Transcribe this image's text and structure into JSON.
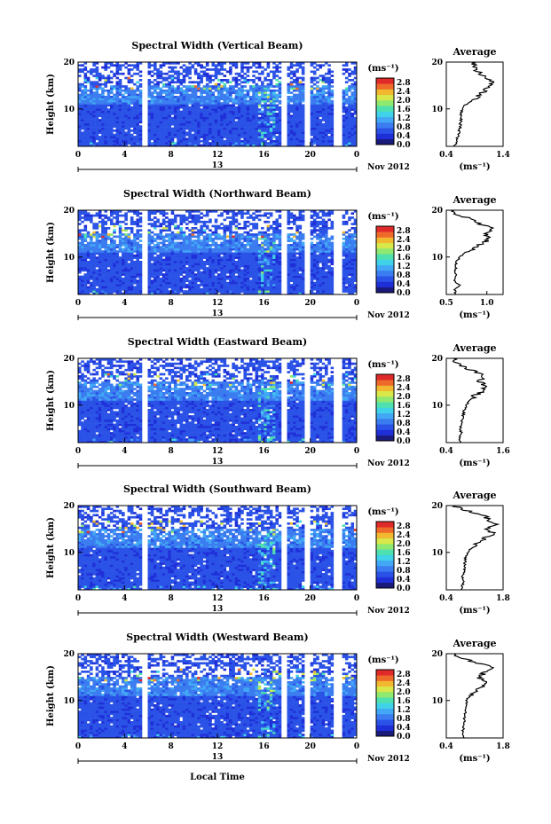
{
  "colors": {
    "scale": [
      "#1a1a7a",
      "#1f2fd8",
      "#2a52e6",
      "#3b7cf0",
      "#42a8f5",
      "#3fd2e8",
      "#4fe0b0",
      "#8fe870",
      "#d8e84a",
      "#f2b830",
      "#ee6a2a",
      "#e02a2a"
    ],
    "background": "#ffffff",
    "gap": "#ffffff",
    "line": "#000000"
  },
  "common": {
    "ylabel": "Height (km)",
    "ytick_labels": [
      "10",
      "20"
    ],
    "xtick_labels": [
      "0",
      "4",
      "8",
      "12",
      "16",
      "20",
      "0"
    ],
    "date_label": "Nov 2012",
    "day_label": "13",
    "colorbar_unit": "(ms⁻¹)",
    "colorbar_ticks": [
      "2.8",
      "2.4",
      "2.0",
      "1.6",
      "1.2",
      "0.8",
      "0.4",
      "0.0"
    ],
    "average_title": "Average",
    "average_unit": "(ms⁻¹)",
    "xlabel": "Local Time"
  },
  "chart_data": [
    {
      "type": "heatmap",
      "title": "Spectral Width (Vertical Beam)",
      "x_range_hours": [
        0,
        24
      ],
      "y_range_km": [
        2,
        20
      ],
      "value_range_ms": [
        0.0,
        3.0
      ],
      "data_gaps_hours": [
        [
          5.6,
          6.0
        ],
        [
          17.6,
          18.0
        ],
        [
          19.6,
          20.0
        ],
        [
          22.0,
          22.8
        ]
      ],
      "average_profile": {
        "xlim": [
          0.4,
          1.4
        ],
        "xticks": [
          "0.4",
          "1.4"
        ],
        "height_km": [
          2,
          3,
          4,
          5,
          6,
          7,
          8,
          9,
          10,
          11,
          12,
          13,
          14,
          15,
          16,
          17,
          18,
          19,
          20
        ],
        "value_ms": [
          0.55,
          0.58,
          0.6,
          0.62,
          0.64,
          0.65,
          0.66,
          0.66,
          0.68,
          0.75,
          0.9,
          1.0,
          1.1,
          1.15,
          1.2,
          1.05,
          0.95,
          0.9,
          0.85
        ]
      }
    },
    {
      "type": "heatmap",
      "title": "Spectral Width (Northward Beam)",
      "x_range_hours": [
        0,
        24
      ],
      "y_range_km": [
        2,
        20
      ],
      "value_range_ms": [
        0.0,
        3.0
      ],
      "data_gaps_hours": [
        [
          5.6,
          6.0
        ],
        [
          17.6,
          18.0
        ],
        [
          19.6,
          20.0
        ],
        [
          22.0,
          22.8
        ]
      ],
      "average_profile": {
        "xlim": [
          0.5,
          1.2
        ],
        "xticks": [
          "0.5",
          "1.0"
        ],
        "height_km": [
          2,
          3,
          4,
          5,
          6,
          7,
          8,
          9,
          10,
          11,
          12,
          13,
          14,
          15,
          16,
          17,
          18,
          19,
          20
        ],
        "value_ms": [
          0.62,
          0.6,
          0.66,
          0.6,
          0.62,
          0.61,
          0.62,
          0.63,
          0.66,
          0.74,
          0.85,
          0.96,
          1.02,
          1.0,
          1.08,
          0.92,
          0.85,
          0.62,
          0.6
        ]
      }
    },
    {
      "type": "heatmap",
      "title": "Spectral Width (Eastward Beam)",
      "x_range_hours": [
        0,
        24
      ],
      "y_range_km": [
        2,
        20
      ],
      "value_range_ms": [
        0.0,
        3.0
      ],
      "data_gaps_hours": [
        [
          5.6,
          6.0
        ],
        [
          17.6,
          18.0
        ],
        [
          19.6,
          20.0
        ],
        [
          22.0,
          22.8
        ]
      ],
      "average_profile": {
        "xlim": [
          0.4,
          1.6
        ],
        "xticks": [
          "0.4",
          "1.6"
        ],
        "height_km": [
          2,
          3,
          4,
          5,
          6,
          7,
          8,
          9,
          10,
          11,
          12,
          13,
          14,
          15,
          16,
          17,
          18,
          19,
          20
        ],
        "value_ms": [
          0.7,
          0.68,
          0.72,
          0.7,
          0.72,
          0.74,
          0.76,
          0.78,
          0.82,
          0.9,
          1.0,
          1.15,
          1.25,
          1.1,
          1.2,
          1.05,
          0.8,
          0.62,
          0.55
        ]
      }
    },
    {
      "type": "heatmap",
      "title": "Spectral Width (Southward Beam)",
      "x_range_hours": [
        0,
        24
      ],
      "y_range_km": [
        2,
        20
      ],
      "value_range_ms": [
        0.0,
        3.0
      ],
      "data_gaps_hours": [
        [
          5.6,
          6.0
        ],
        [
          17.6,
          18.0
        ],
        [
          19.6,
          20.0
        ],
        [
          22.0,
          22.8
        ]
      ],
      "average_profile": {
        "xlim": [
          0.4,
          1.8
        ],
        "xticks": [
          "0.4",
          "1.8"
        ],
        "height_km": [
          2,
          3,
          4,
          5,
          6,
          7,
          8,
          9,
          10,
          11,
          12,
          13,
          14,
          15,
          16,
          17,
          18,
          19,
          20
        ],
        "value_ms": [
          0.78,
          0.8,
          0.82,
          0.8,
          0.84,
          0.86,
          0.86,
          0.88,
          0.92,
          1.02,
          1.15,
          1.35,
          1.55,
          1.4,
          1.6,
          1.45,
          1.3,
          0.85,
          0.6
        ]
      }
    },
    {
      "type": "heatmap",
      "title": "Spectral Width (Westward Beam)",
      "x_range_hours": [
        0,
        24
      ],
      "y_range_km": [
        2,
        20
      ],
      "value_range_ms": [
        0.0,
        3.0
      ],
      "data_gaps_hours": [
        [
          5.6,
          6.0
        ],
        [
          17.6,
          18.0
        ],
        [
          19.6,
          20.0
        ],
        [
          22.0,
          22.8
        ]
      ],
      "average_profile": {
        "xlim": [
          0.4,
          1.8
        ],
        "xticks": [
          "0.4",
          "1.8"
        ],
        "height_km": [
          2,
          3,
          4,
          5,
          6,
          7,
          8,
          9,
          10,
          11,
          12,
          13,
          14,
          15,
          16,
          17,
          18,
          19,
          20
        ],
        "value_ms": [
          0.82,
          0.8,
          0.82,
          0.84,
          0.84,
          0.86,
          0.88,
          0.88,
          0.9,
          0.98,
          1.1,
          1.25,
          1.4,
          1.2,
          1.35,
          1.55,
          1.2,
          0.78,
          0.6
        ]
      }
    }
  ]
}
